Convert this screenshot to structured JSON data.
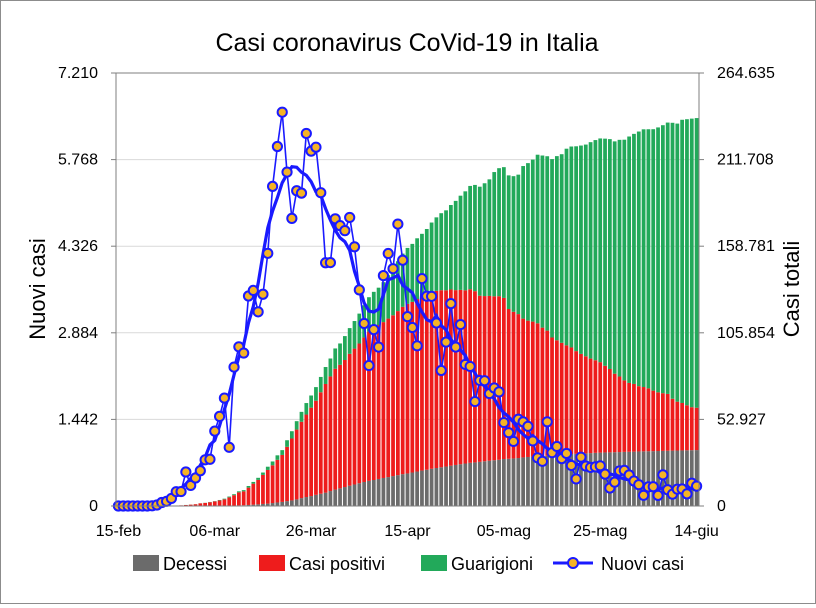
{
  "chart_data": {
    "type": "bar",
    "title": "Casi coronavirus CoVid-19 in Italia",
    "ylabel": "Nuovi casi",
    "y2label": "Casi totali",
    "ylim": [
      0,
      7210
    ],
    "y2lim": [
      0,
      264635
    ],
    "yticks": [
      "0",
      "1.442",
      "2.884",
      "4.326",
      "5.768",
      "7.210"
    ],
    "y2ticks": [
      "0",
      "52.927",
      "105.854",
      "158.781",
      "211.708",
      "264.635"
    ],
    "xticks": [
      "15-feb",
      "06-mar",
      "26-mar",
      "15-apr",
      "05-mag",
      "25-mag",
      "14-giu"
    ],
    "grid": true,
    "legend_position": "bottom",
    "stacked": true,
    "days": 121,
    "colors": {
      "Decessi": "#6b6b6b",
      "Casi positivi": "#ee1c1c",
      "Guarigioni": "#22a95a",
      "Nuovi casi": "#1a1aff",
      "marker_fill": "#f5b325"
    },
    "series": [
      {
        "name": "Decessi",
        "axis": "right",
        "kind": "bar",
        "values": [
          0,
          0,
          0,
          0,
          0,
          0,
          0,
          0,
          0,
          0,
          2,
          3,
          7,
          10,
          12,
          17,
          21,
          29,
          34,
          52,
          79,
          107,
          148,
          197,
          233,
          366,
          463,
          631,
          827,
          1016,
          1266,
          1441,
          1809,
          2158,
          2503,
          2978,
          3405,
          4032,
          4825,
          5476,
          6077,
          6820,
          7503,
          8165,
          9134,
          10023,
          10779,
          11591,
          12428,
          13155,
          13915,
          14681,
          15362,
          15887,
          16523,
          17127,
          17669,
          18279,
          18849,
          19468,
          19899,
          20465,
          21067,
          21645,
          22170,
          22745,
          23227,
          23660,
          24114,
          24648,
          25085,
          25549,
          25969,
          26384,
          26644,
          26977,
          27359,
          27682,
          27967,
          28236,
          28710,
          28884,
          29079,
          29315,
          29684,
          29958,
          30201,
          30395,
          30560,
          30739,
          30911,
          31106,
          31368,
          31610,
          31763,
          31908,
          32007,
          32169,
          32330,
          32486,
          32616,
          32735,
          32785,
          32877,
          32955,
          33072,
          33142,
          33229,
          33340,
          33415,
          33475,
          33530,
          33601,
          33689,
          33774,
          33846,
          33899,
          33964,
          34043,
          34114,
          34167
        ]
      },
      {
        "name": "Casi positivi",
        "axis": "right",
        "kind": "bar",
        "values": [
          0,
          0,
          0,
          0,
          0,
          0,
          0,
          3,
          3,
          3,
          162,
          221,
          311,
          385,
          588,
          821,
          1049,
          1577,
          1835,
          2263,
          2706,
          3296,
          3916,
          5061,
          6387,
          7985,
          8514,
          10590,
          12839,
          14955,
          17750,
          20603,
          23073,
          26062,
          28710,
          33190,
          37860,
          42681,
          46638,
          50418,
          54030,
          57521,
          62013,
          66414,
          70065,
          73880,
          75528,
          77635,
          80572,
          83049,
          85388,
          88274,
          91246,
          93187,
          94067,
          95262,
          96877,
          98273,
          100269,
          102253,
          103616,
          104291,
          105418,
          106607,
          106962,
          107771,
          108257,
          108237,
          107709,
          107699,
          106848,
          106527,
          105847,
          106103,
          104657,
          101551,
          100943,
          100704,
          100179,
          99980,
          98467,
          91528,
          89624,
          87961,
          84842,
          83324,
          82488,
          81266,
          78457,
          76440,
          72070,
          70187,
          68351,
          66553,
          65129,
          62752,
          60960,
          59322,
          57752,
          56594,
          55300,
          52942,
          50966,
          47986,
          46175,
          43691,
          42075,
          41367,
          39893,
          39297,
          38429,
          36976,
          35877,
          35262,
          34730,
          31710,
          29873,
          28997,
          27485,
          26274,
          25909
        ]
      },
      {
        "name": "Guarigioni",
        "axis": "right",
        "kind": "bar",
        "values": [
          0,
          0,
          0,
          0,
          0,
          0,
          0,
          0,
          0,
          0,
          0,
          1,
          1,
          1,
          40,
          45,
          46,
          50,
          83,
          149,
          160,
          276,
          414,
          523,
          589,
          622,
          724,
          1004,
          1045,
          1258,
          1439,
          1966,
          2335,
          2749,
          2941,
          4025,
          4440,
          5129,
          6072,
          7024,
          7432,
          8326,
          9362,
          10361,
          10950,
          12384,
          13030,
          14620,
          15729,
          16847,
          18278,
          19758,
          20996,
          21815,
          22837,
          24392,
          26491,
          28470,
          30455,
          32534,
          34211,
          35435,
          37130,
          38092,
          40164,
          42727,
          44927,
          47055,
          48877,
          51600,
          54543,
          57576,
          60498,
          63120,
          64928,
          66624,
          68941,
          71252,
          75945,
          78249,
          79914,
          81654,
          82879,
          85231,
          93245,
          96276,
          99023,
          103031,
          105186,
          106587,
          109039,
          112541,
          115288,
          120205,
          122810,
          125176,
          127326,
          129401,
          132282,
          134560,
          136720,
          138840,
          140479,
          141981,
          144658,
          147101,
          150604,
          152844,
          155633,
          157507,
          158355,
          159784,
          161895,
          163781,
          165837,
          168646,
          169939,
          173085,
          174865,
          176370,
          177010
        ]
      },
      {
        "name": "Nuovi casi",
        "axis": "left",
        "kind": "line",
        "values": [
          0,
          0,
          0,
          0,
          0,
          0,
          0,
          3,
          17,
          58,
          78,
          126,
          238,
          240,
          566,
          342,
          466,
          587,
          769,
          778,
          1247,
          1492,
          1797,
          977,
          2313,
          2651,
          2547,
          3497,
          3590,
          3233,
          3526,
          4207,
          5322,
          5986,
          6557,
          5560,
          4789,
          5249,
          5210,
          6203,
          5909,
          5974,
          5217,
          4050,
          4053,
          4782,
          4668,
          4585,
          4805,
          4316,
          3599,
          3039,
          2339,
          2937,
          2646,
          3836,
          4204,
          3951,
          4694,
          4092,
          3153,
          2972,
          2667,
          3786,
          3493,
          3491,
          3047,
          2256,
          2729,
          3370,
          2646,
          3021,
          2357,
          2324,
          1739,
          2091,
          2086,
          1872,
          1965,
          1900,
          1389,
          1221,
          1075,
          1444,
          1401,
          1327,
          1083,
          802,
          744,
          1402,
          888,
          992,
          789,
          875,
          675,
          451,
          813,
          665,
          642,
          652,
          669,
          531,
          300,
          397,
          584,
          593,
          516,
          416,
          355,
          178,
          318,
          321,
          177,
          518,
          270,
          197,
          280,
          283,
          202,
          379,
          331
        ]
      }
    ]
  }
}
